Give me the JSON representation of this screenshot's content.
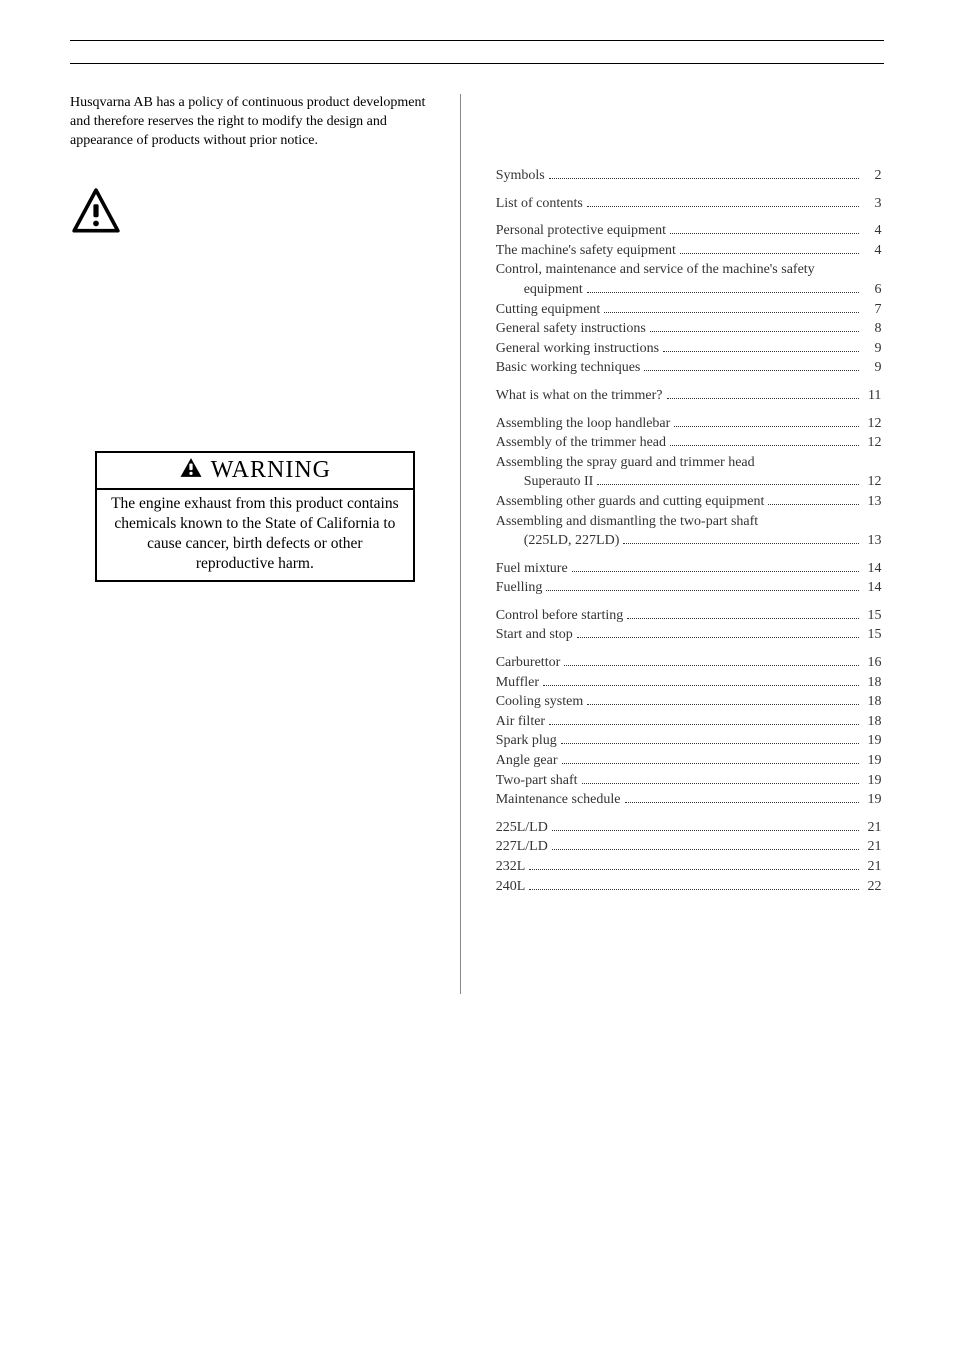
{
  "intro": "Husqvarna AB has a policy of continuous product development and therefore reserves the right to modify the design and appearance of products without prior notice.",
  "warning": {
    "title": "WARNING",
    "body": "The engine exhaust from this product contains chemicals known to the State of California to cause cancer, birth defects or other reproductive harm."
  },
  "toc": [
    {
      "group": true,
      "items": [
        {
          "label": "Symbols",
          "page": "2"
        }
      ]
    },
    {
      "group": true,
      "items": [
        {
          "label": "List of contents",
          "page": "3"
        }
      ]
    },
    {
      "group": true,
      "items": [
        {
          "label": "Personal protective equipment",
          "page": "4"
        },
        {
          "label": "The machine's safety equipment",
          "page": "4"
        },
        {
          "label": "Control, maintenance and service of the machine's safety",
          "wrap": true
        },
        {
          "label": "equipment",
          "page": "6",
          "indent": true
        },
        {
          "label": "Cutting equipment",
          "page": "7"
        },
        {
          "label": "General safety instructions",
          "page": "8"
        },
        {
          "label": "General working instructions",
          "page": "9"
        },
        {
          "label": "Basic working techniques",
          "page": "9"
        }
      ]
    },
    {
      "group": true,
      "items": [
        {
          "label": "What is what on the trimmer?",
          "page": "11"
        }
      ]
    },
    {
      "group": true,
      "items": [
        {
          "label": "Assembling the loop handlebar",
          "page": "12"
        },
        {
          "label": "Assembly of the trimmer head",
          "page": "12"
        },
        {
          "label": "Assembling the spray guard and trimmer head",
          "wrap": true
        },
        {
          "label": "Superauto II",
          "page": "12",
          "indent": true
        },
        {
          "label": "Assembling other guards and cutting equipment",
          "page": "13"
        },
        {
          "label": "Assembling and dismantling the two-part shaft",
          "wrap": true
        },
        {
          "label": "(225LD, 227LD)",
          "page": "13",
          "indent": true
        }
      ]
    },
    {
      "group": true,
      "items": [
        {
          "label": "Fuel mixture",
          "page": "14"
        },
        {
          "label": "Fuelling",
          "page": "14"
        }
      ]
    },
    {
      "group": true,
      "items": [
        {
          "label": "Control before starting",
          "page": "15"
        },
        {
          "label": "Start and stop",
          "page": "15"
        }
      ]
    },
    {
      "group": true,
      "items": [
        {
          "label": "Carburettor",
          "page": "16"
        },
        {
          "label": "Muffler",
          "page": "18"
        },
        {
          "label": "Cooling system",
          "page": "18"
        },
        {
          "label": "Air filter",
          "page": "18"
        },
        {
          "label": "Spark plug",
          "page": "19"
        },
        {
          "label": "Angle gear",
          "page": "19"
        },
        {
          "label": "Two-part shaft",
          "page": "19"
        },
        {
          "label": "Maintenance schedule",
          "page": "19"
        }
      ]
    },
    {
      "group": true,
      "items": [
        {
          "label": "225L/LD",
          "page": "21"
        },
        {
          "label": "227L/LD",
          "page": "21"
        },
        {
          "label": "232L",
          "page": "21"
        },
        {
          "label": "240L",
          "page": "22"
        }
      ]
    }
  ]
}
